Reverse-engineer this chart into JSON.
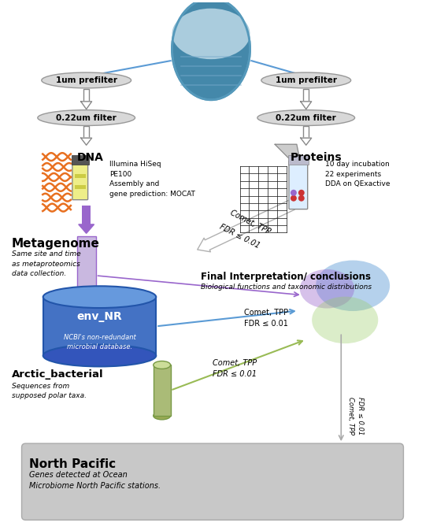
{
  "bg_color": "#ffffff",
  "prefilter1_label": "1um prefilter",
  "filter022_label": "0.22um filter",
  "dna_label": "DNA",
  "proteins_label": "Proteins",
  "metagenome_label": "Metagenome",
  "metagenome_sub": "Same site and time\nas metaproteomics\ndata collection.",
  "dna_info": "Illumina HiSeq\nPE100\nAssembly and\ngene prediction: MOCAT",
  "proteins_info": "10 day incubation\n22 experiments\nDDA on QExactive",
  "final_title": "Final Interpretation/ conclusions",
  "final_sub": "Biological functions and taxonomic distributions",
  "env_nr_label": "env_NR",
  "env_nr_sub": "NCBI's non-redundant\nmicrobial database.",
  "arctic_label": "Arctic_bacterial",
  "arctic_sub": "Sequences from\nsupposed polar taxa.",
  "np_label": "North Pacific",
  "np_sub": "Genes detected at Ocean\nMicrobiome North Pacific stations.",
  "arrow_color_blue": "#5B9BD5",
  "arrow_color_gray": "#999999",
  "arrow_color_purple": "#9966CC",
  "arrow_color_green": "#99BB55",
  "gray_ellipse_fc": "#D8D8D8",
  "gray_ellipse_ec": "#999999",
  "purple_color": "#9966CC",
  "purple_rect_fc": "#C9B8E0",
  "db_blue_fc": "#4472C4",
  "db_blue_ec": "#2255AA",
  "db_blue_top": "#6699DD",
  "db_blue_bot": "#3355BB",
  "green_cyl_fc": "#AABB77",
  "green_cyl_ec": "#779944",
  "green_cyl_top": "#CCDD99",
  "green_cyl_bot": "#99AA55",
  "venn_blue_fc": "#5B9BD5",
  "venn_purple_fc": "#9966CC",
  "venn_green_fc": "#99CC66",
  "np_fc": "#C8C8C8",
  "np_ec": "#AAAAAA",
  "ocean_fc": "#4488AA",
  "ocean_ec": "#5599BB",
  "dna_orange": "#E87020",
  "white_arrow_fc": "#FFFFFF",
  "white_arrow_ec": "#AAAAAA"
}
